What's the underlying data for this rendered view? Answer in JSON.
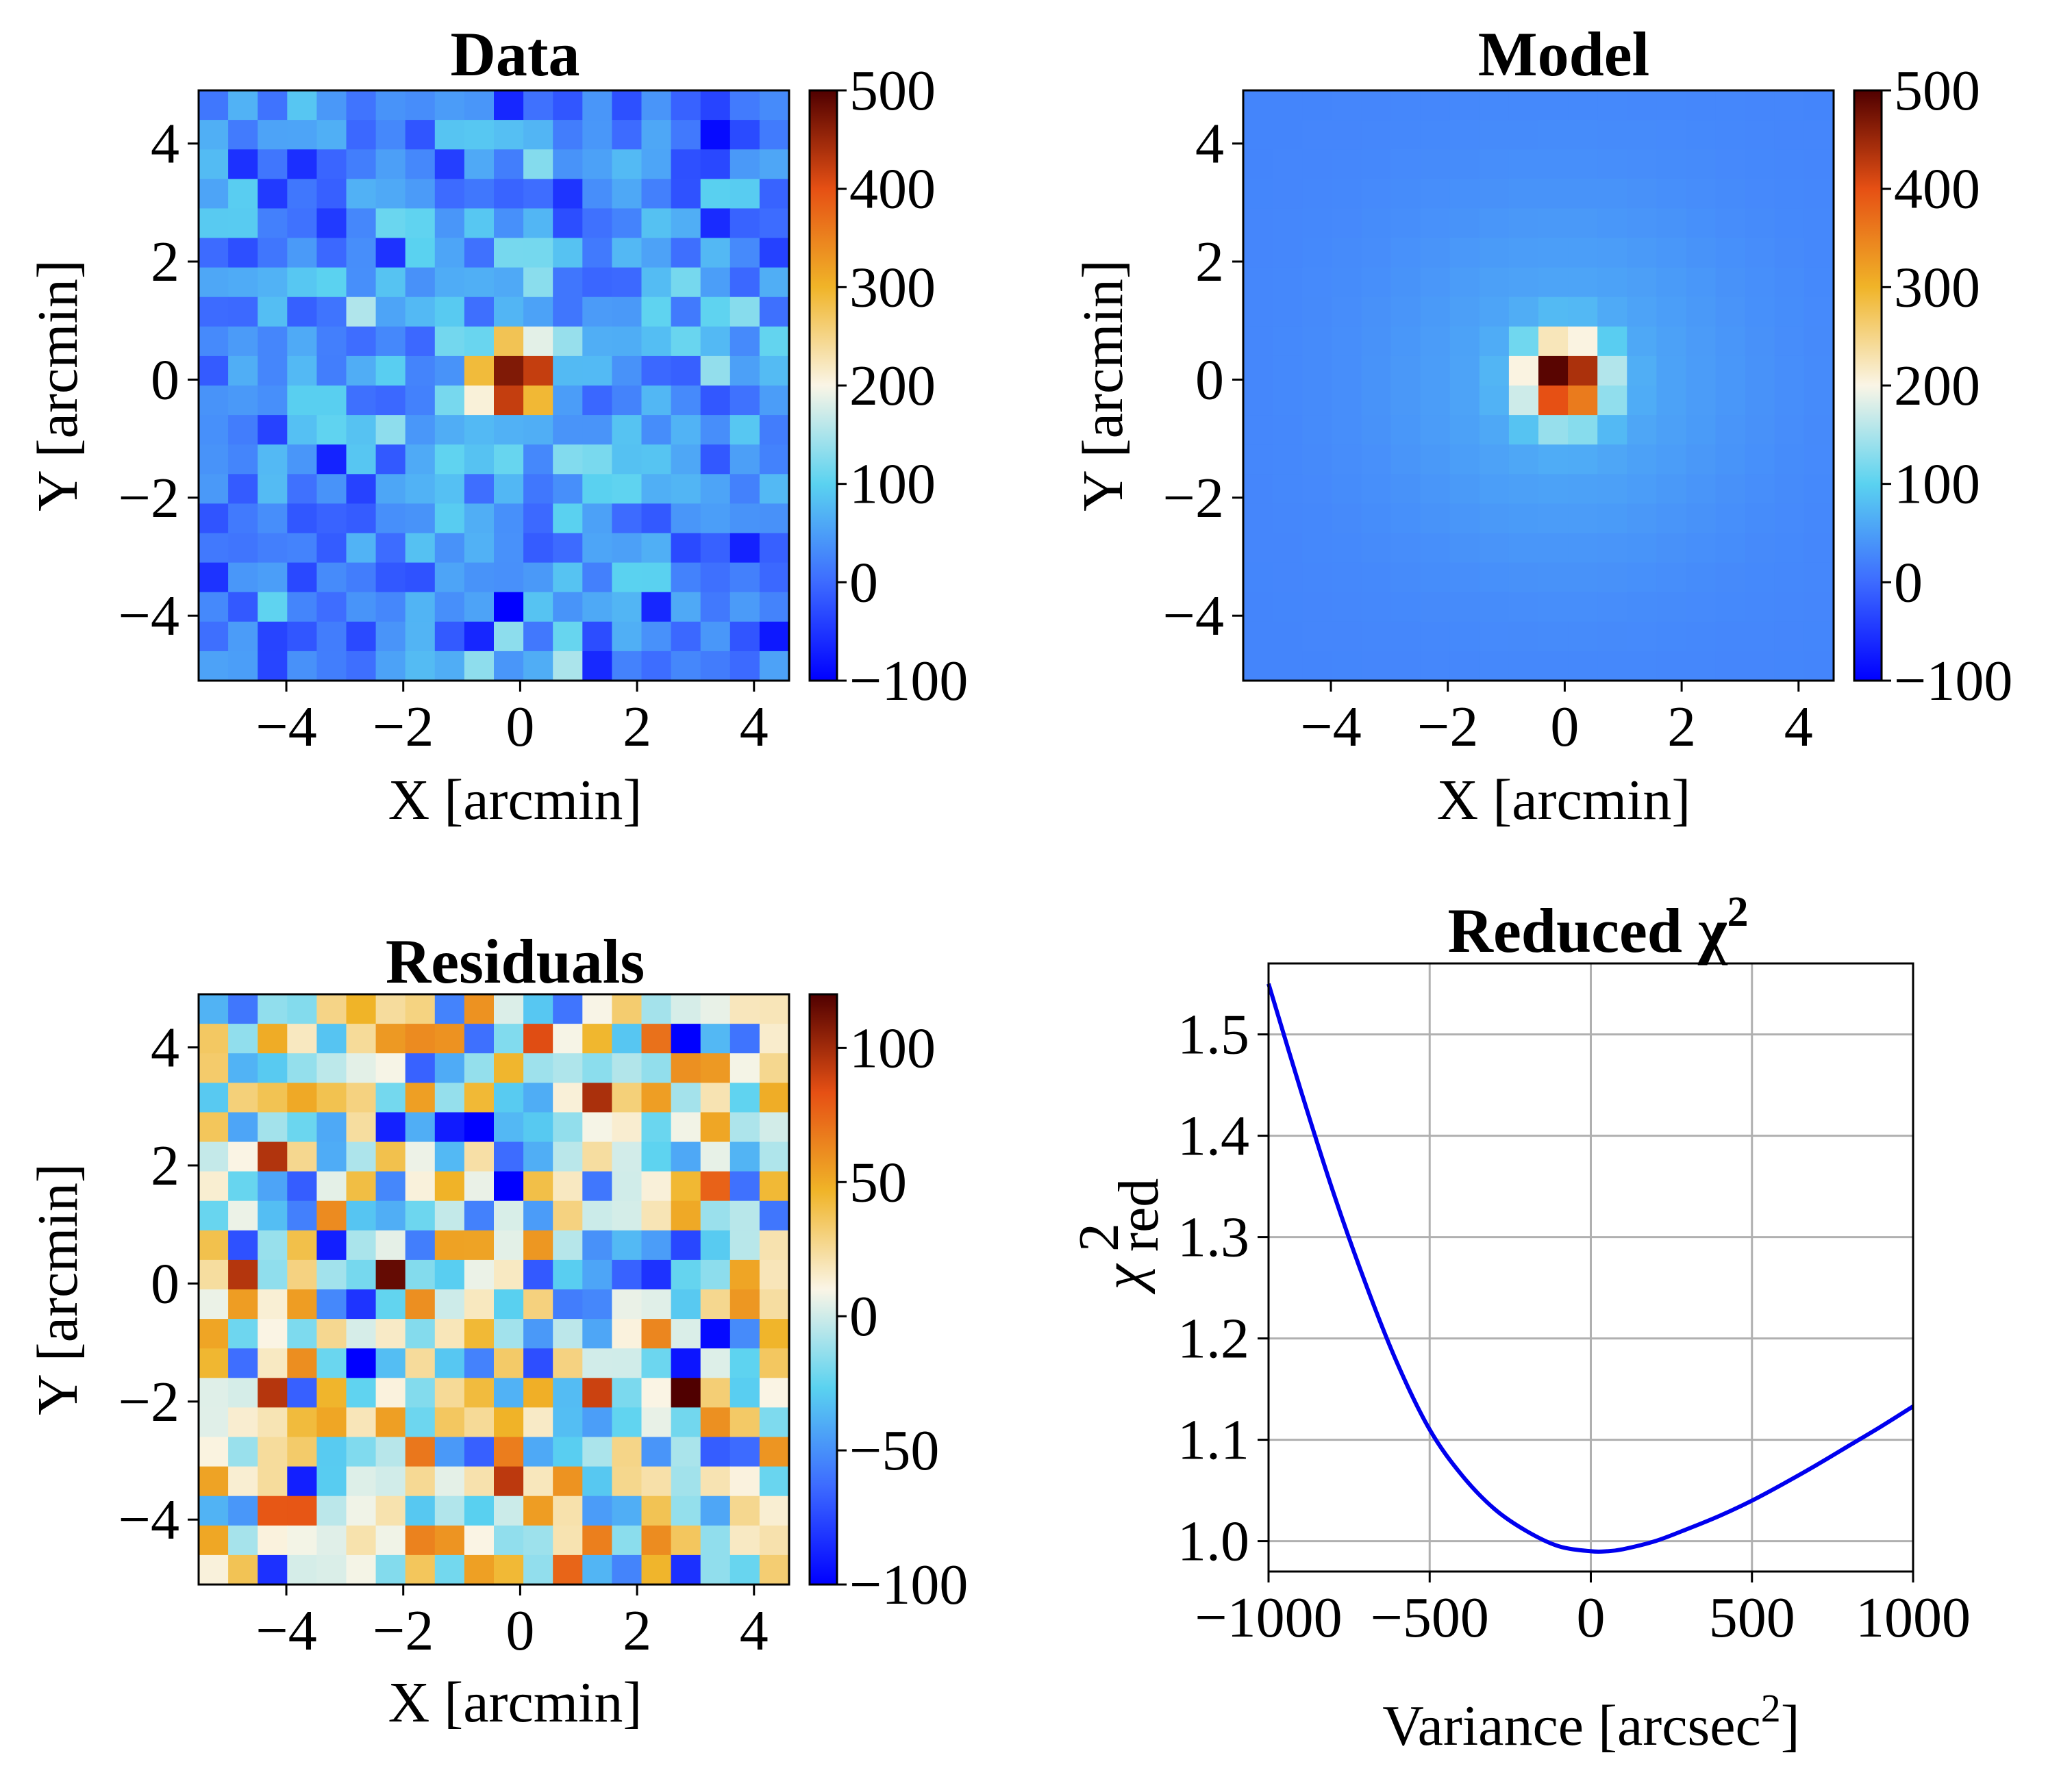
{
  "colors": {
    "colormap": [
      "#0000ff",
      "#3d6bff",
      "#5ad2f0",
      "#faf5e6",
      "#f0b428",
      "#e65014",
      "#500000"
    ],
    "line": "#0000ee",
    "grid": "#b0b0b0"
  },
  "chart_data": [
    {
      "type": "heatmap",
      "title": "Data",
      "xlabel": "X [arcmin]",
      "ylabel": "Y [arcmin]",
      "xlim": [
        -5.5,
        4.6
      ],
      "ylim": [
        -5.1,
        4.9
      ],
      "xticks": [
        -4,
        -2,
        0,
        2,
        4
      ],
      "xticklabels": [
        "−4",
        "−2",
        "0",
        "2",
        "4"
      ],
      "yticks": [
        4,
        2,
        0,
        -2,
        -4
      ],
      "yticklabels": [
        "4",
        "2",
        "0",
        "−2",
        "−4"
      ],
      "grid_size": [
        20,
        20
      ],
      "pixel_size_arcmin": 0.5,
      "source_center": [
        0,
        0
      ],
      "peak_value": 500,
      "noise_amplitude": 45,
      "colorbar": {
        "vmin": -100,
        "vmax": 500,
        "ticks": [
          500,
          400,
          300,
          200,
          100,
          0,
          -100
        ],
        "ticklabels": [
          "500",
          "400",
          "300",
          "200",
          "100",
          "0",
          "−100"
        ]
      }
    },
    {
      "type": "heatmap",
      "title": "Model",
      "xlabel": "X [arcmin]",
      "ylabel": "Y [arcmin]",
      "xlim": [
        -5.5,
        4.6
      ],
      "ylim": [
        -5.1,
        4.9
      ],
      "xticks": [
        -4,
        -2,
        0,
        2,
        4
      ],
      "xticklabels": [
        "−4",
        "−2",
        "0",
        "2",
        "4"
      ],
      "yticks": [
        4,
        2,
        0,
        -2,
        -4
      ],
      "yticklabels": [
        "4",
        "2",
        "0",
        "−2",
        "−4"
      ],
      "grid_size": [
        20,
        20
      ],
      "pixel_size_arcmin": 0.5,
      "source_center": [
        0,
        0
      ],
      "peak_value": 500,
      "noise_amplitude": 0,
      "colorbar": {
        "vmin": -100,
        "vmax": 500,
        "ticks": [
          500,
          400,
          300,
          200,
          100,
          0,
          -100
        ],
        "ticklabels": [
          "500",
          "400",
          "300",
          "200",
          "100",
          "0",
          "−100"
        ]
      }
    },
    {
      "type": "heatmap",
      "title": "Residuals",
      "xlabel": "X [arcmin]",
      "ylabel": "Y [arcmin]",
      "xlim": [
        -5.5,
        4.6
      ],
      "ylim": [
        -5.1,
        4.9
      ],
      "xticks": [
        -4,
        -2,
        0,
        2,
        4
      ],
      "xticklabels": [
        "−4",
        "−2",
        "0",
        "2",
        "4"
      ],
      "yticks": [
        4,
        2,
        0,
        -2,
        -4
      ],
      "yticklabels": [
        "4",
        "2",
        "0",
        "−2",
        "−4"
      ],
      "grid_size": [
        20,
        20
      ],
      "pixel_size_arcmin": 0.5,
      "noise_amplitude": 40,
      "colorbar": {
        "vmin": -100,
        "vmax": 120,
        "ticks": [
          100,
          50,
          0,
          -50,
          -100
        ],
        "ticklabels": [
          "100",
          "50",
          "0",
          "−50",
          "−100"
        ]
      }
    },
    {
      "type": "line",
      "title": "Reduced χ",
      "title_superscript": "2",
      "xlabel": "Variance [arcsec",
      "xlabel_superscript": "2",
      "xlabel_suffix": "]",
      "ylabel": "χ",
      "ylabel_superscript": "2",
      "ylabel_subscript": "red",
      "xlim": [
        -1000,
        1000
      ],
      "ylim": [
        0.97,
        1.57
      ],
      "xticks": [
        -1000,
        -500,
        0,
        500,
        1000
      ],
      "xticklabels": [
        "−1000",
        "−500",
        "0",
        "500",
        "1000"
      ],
      "yticks": [
        1.5,
        1.4,
        1.3,
        1.2,
        1.1,
        1.0
      ],
      "yticklabels": [
        "1.5",
        "1.4",
        "1.3",
        "1.2",
        "1.1",
        "1.0"
      ],
      "grid": true,
      "x": [
        -1000,
        -900,
        -800,
        -700,
        -600,
        -500,
        -400,
        -300,
        -200,
        -100,
        0,
        50,
        100,
        200,
        300,
        400,
        500,
        600,
        700,
        800,
        900,
        1000
      ],
      "y": [
        1.55,
        1.445,
        1.345,
        1.255,
        1.175,
        1.11,
        1.065,
        1.032,
        1.01,
        0.995,
        0.99,
        0.99,
        0.992,
        1.0,
        1.012,
        1.025,
        1.04,
        1.057,
        1.075,
        1.094,
        1.113,
        1.133
      ]
    }
  ]
}
